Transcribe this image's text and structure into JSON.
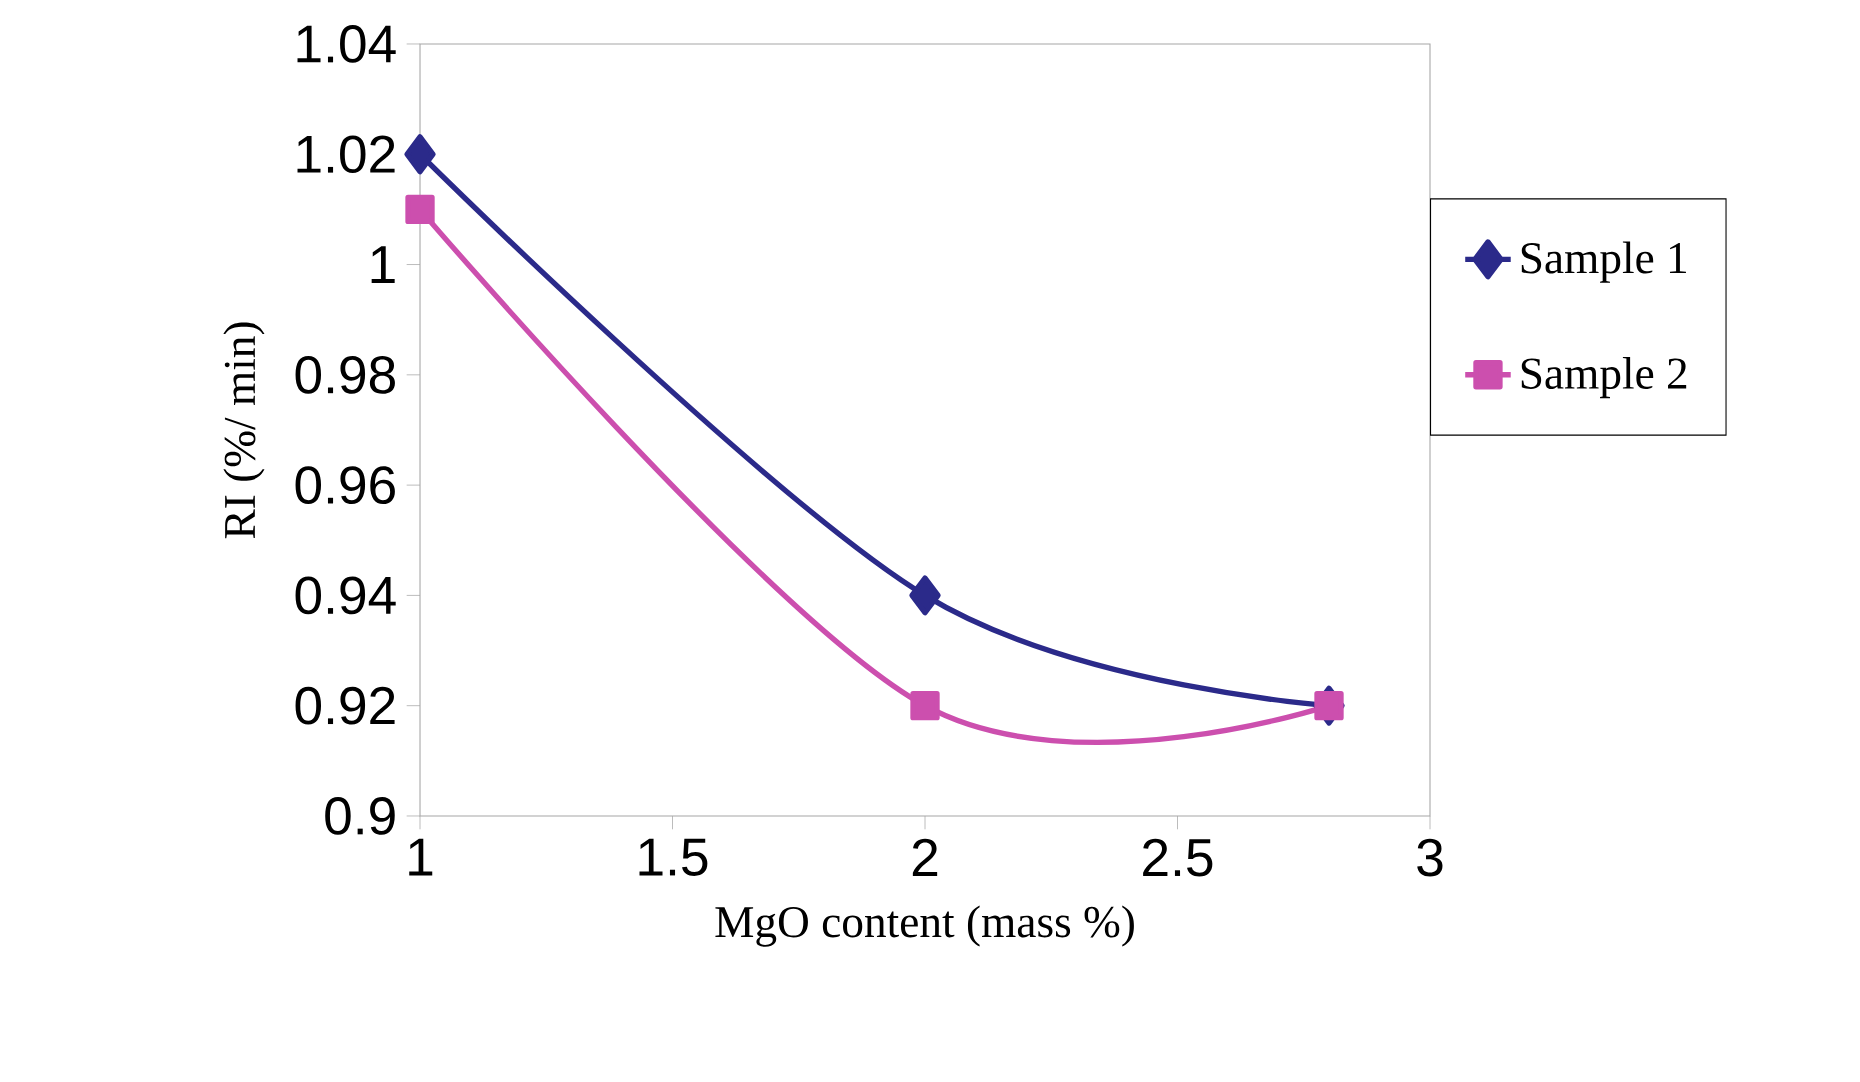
{
  "chart_data": {
    "type": "line",
    "xlabel": "MgO content (mass %)",
    "ylabel": "RI (%/ min)",
    "x": [
      1,
      2,
      2.8
    ],
    "series": [
      {
        "name": "Sample 1",
        "color": "#2b2a8a",
        "marker": "diamond",
        "values": [
          1.02,
          0.94,
          0.92
        ]
      },
      {
        "name": "Sample 2",
        "color": "#cc4fae",
        "marker": "square",
        "values": [
          1.01,
          0.92,
          0.92
        ]
      }
    ],
    "xlim": [
      1,
      3
    ],
    "xticks": [
      1,
      1.5,
      2,
      2.5,
      3
    ],
    "ylim": [
      0.9,
      1.04
    ],
    "yticks": [
      0.9,
      0.92,
      0.94,
      0.96,
      0.98,
      1,
      1.02,
      1.04
    ],
    "grid": false,
    "legend": "right",
    "line_style": "solid"
  }
}
